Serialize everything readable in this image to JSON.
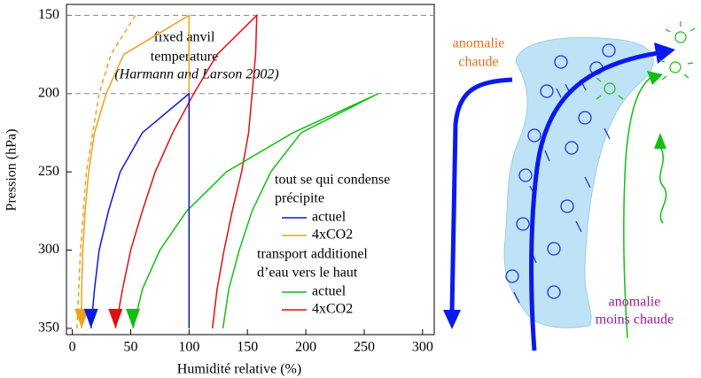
{
  "chart_data": {
    "type": "line",
    "xlabel": "Humidité relative (%)",
    "ylabel": "Pression (hPa)",
    "xlim": [
      -5,
      310
    ],
    "ylim": [
      354,
      143
    ],
    "xticks": [
      0,
      50,
      100,
      150,
      200,
      250,
      300
    ],
    "yticks": [
      150,
      200,
      250,
      300,
      350
    ],
    "hlines": [
      150,
      200
    ],
    "annotations": [
      "fixed anvil",
      "temperature",
      "(Harmann and Larson 2002)"
    ],
    "legend_headings": [
      [
        "tout se qui condense",
        "précipite"
      ],
      [
        "transport additionel",
        "d’eau vers le haut"
      ]
    ],
    "series": [
      {
        "name": "actuel",
        "color": "#0a1ae0",
        "x": [
          100,
          100,
          60,
          41,
          31,
          23,
          19,
          16
        ],
        "y": [
          350,
          200,
          225,
          250,
          275,
          300,
          325,
          350
        ]
      },
      {
        "name": "4xCO2",
        "color": "#f0a020",
        "x": [
          100,
          100,
          44,
          29,
          19,
          14,
          11,
          9,
          8,
          8
        ],
        "y": [
          350,
          150,
          175,
          200,
          225,
          250,
          275,
          300,
          325,
          350
        ]
      },
      {
        "name": "actuel",
        "color": "#10c010",
        "x": [
          129,
          134,
          143,
          154,
          170,
          196,
          262,
          189,
          132,
          98,
          75,
          60,
          52
        ],
        "y": [
          350,
          325,
          300,
          275,
          250,
          225,
          200,
          225,
          250,
          275,
          300,
          325,
          350
        ]
      },
      {
        "name": "4xCO2",
        "color": "#e01010",
        "x": [
          120,
          124,
          130,
          137,
          145,
          151,
          154,
          157,
          158,
          124,
          104,
          86,
          71,
          60,
          50,
          43,
          37
        ],
        "y": [
          350,
          325,
          300,
          275,
          250,
          225,
          200,
          175,
          150,
          175,
          200,
          225,
          250,
          275,
          300,
          325,
          350
        ]
      },
      {
        "color": "#f0a020",
        "dashed": true,
        "x": [
          54,
          33,
          23,
          12,
          7,
          4
        ],
        "y": [
          150,
          175,
          200,
          250,
          300,
          350
        ]
      }
    ]
  },
  "diagram": {
    "warm_label": [
      "anomalie",
      "chaude"
    ],
    "less_warm_label": [
      "anomalie",
      "moins chaude"
    ]
  }
}
